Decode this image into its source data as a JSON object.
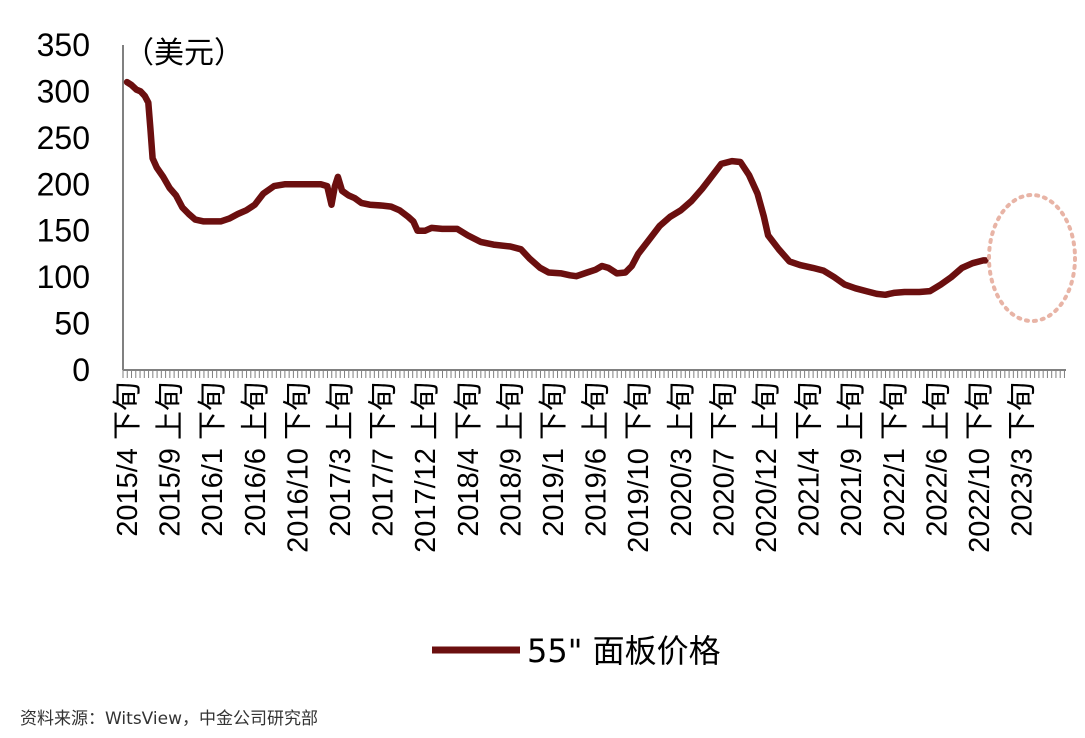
{
  "chart_data": {
    "type": "line",
    "unit_label": "（美元）",
    "ylim": [
      0,
      350
    ],
    "yticks": [
      0,
      50,
      100,
      150,
      200,
      250,
      300,
      350
    ],
    "x_tick_labels": [
      "2015/4 下旬",
      "2015/9 上旬",
      "2016/1 下旬",
      "2016/6 上旬",
      "2016/10 下旬",
      "2017/3 上旬",
      "2017/7 下旬",
      "2017/12 上旬",
      "2018/4 下旬",
      "2018/9 上旬",
      "2019/1 下旬",
      "2019/6 上旬",
      "2019/10 下旬",
      "2020/3 上旬",
      "2020/7 下旬",
      "2020/12 上旬",
      "2021/4 下旬",
      "2021/9 上旬",
      "2022/1 下旬",
      "2022/6 上旬",
      "2022/10 下旬",
      "2023/3 下旬"
    ],
    "series": [
      {
        "name": "55\" 面板价格",
        "color": "#6b0f0f",
        "points": [
          [
            0,
            310
          ],
          [
            0.1,
            307
          ],
          [
            0.22,
            302
          ],
          [
            0.32,
            300
          ],
          [
            0.42,
            295
          ],
          [
            0.5,
            288
          ],
          [
            0.55,
            260
          ],
          [
            0.6,
            228
          ],
          [
            0.7,
            218
          ],
          [
            0.85,
            208
          ],
          [
            1.0,
            196
          ],
          [
            1.15,
            188
          ],
          [
            1.3,
            175
          ],
          [
            1.45,
            168
          ],
          [
            1.6,
            162
          ],
          [
            1.8,
            160
          ],
          [
            2.0,
            160
          ],
          [
            2.2,
            160
          ],
          [
            2.4,
            163
          ],
          [
            2.6,
            168
          ],
          [
            2.8,
            172
          ],
          [
            3.0,
            178
          ],
          [
            3.2,
            190
          ],
          [
            3.45,
            198
          ],
          [
            3.7,
            200
          ],
          [
            4.0,
            200
          ],
          [
            4.3,
            200
          ],
          [
            4.55,
            200
          ],
          [
            4.7,
            198
          ],
          [
            4.8,
            178
          ],
          [
            4.88,
            198
          ],
          [
            4.95,
            208
          ],
          [
            5.05,
            193
          ],
          [
            5.2,
            188
          ],
          [
            5.35,
            185
          ],
          [
            5.5,
            180
          ],
          [
            5.7,
            178
          ],
          [
            6.0,
            177
          ],
          [
            6.2,
            176
          ],
          [
            6.4,
            172
          ],
          [
            6.6,
            165
          ],
          [
            6.72,
            160
          ],
          [
            6.82,
            150
          ],
          [
            7.0,
            150
          ],
          [
            7.15,
            153
          ],
          [
            7.4,
            152
          ],
          [
            7.75,
            152
          ],
          [
            8.0,
            145
          ],
          [
            8.3,
            138
          ],
          [
            8.6,
            135
          ],
          [
            9.0,
            133
          ],
          [
            9.25,
            130
          ],
          [
            9.45,
            120
          ],
          [
            9.7,
            110
          ],
          [
            9.9,
            105
          ],
          [
            10.2,
            104
          ],
          [
            10.4,
            102
          ],
          [
            10.55,
            101
          ],
          [
            10.8,
            105
          ],
          [
            11.0,
            108
          ],
          [
            11.15,
            112
          ],
          [
            11.3,
            110
          ],
          [
            11.5,
            104
          ],
          [
            11.7,
            105
          ],
          [
            11.85,
            112
          ],
          [
            12.0,
            125
          ],
          [
            12.25,
            140
          ],
          [
            12.5,
            155
          ],
          [
            12.75,
            165
          ],
          [
            13.0,
            172
          ],
          [
            13.25,
            182
          ],
          [
            13.5,
            195
          ],
          [
            13.75,
            210
          ],
          [
            13.95,
            222
          ],
          [
            14.2,
            225
          ],
          [
            14.4,
            224
          ],
          [
            14.6,
            210
          ],
          [
            14.8,
            190
          ],
          [
            14.95,
            165
          ],
          [
            15.05,
            145
          ],
          [
            15.3,
            130
          ],
          [
            15.55,
            117
          ],
          [
            15.8,
            113
          ],
          [
            16.1,
            110
          ],
          [
            16.35,
            107
          ],
          [
            16.6,
            100
          ],
          [
            16.85,
            92
          ],
          [
            17.1,
            88
          ],
          [
            17.35,
            85
          ],
          [
            17.6,
            82
          ],
          [
            17.8,
            81
          ],
          [
            18.0,
            83
          ],
          [
            18.25,
            84
          ],
          [
            18.6,
            84
          ],
          [
            18.85,
            85
          ],
          [
            19.1,
            92
          ],
          [
            19.35,
            100
          ],
          [
            19.6,
            110
          ],
          [
            19.85,
            115
          ],
          [
            20.1,
            118
          ],
          [
            20.15,
            118
          ]
        ]
      }
    ],
    "annotation": "dotted-circle-highlight-recent-rise",
    "legend_placement": "bottom-center"
  },
  "source": "资料来源：WitsView，中金公司研究部"
}
